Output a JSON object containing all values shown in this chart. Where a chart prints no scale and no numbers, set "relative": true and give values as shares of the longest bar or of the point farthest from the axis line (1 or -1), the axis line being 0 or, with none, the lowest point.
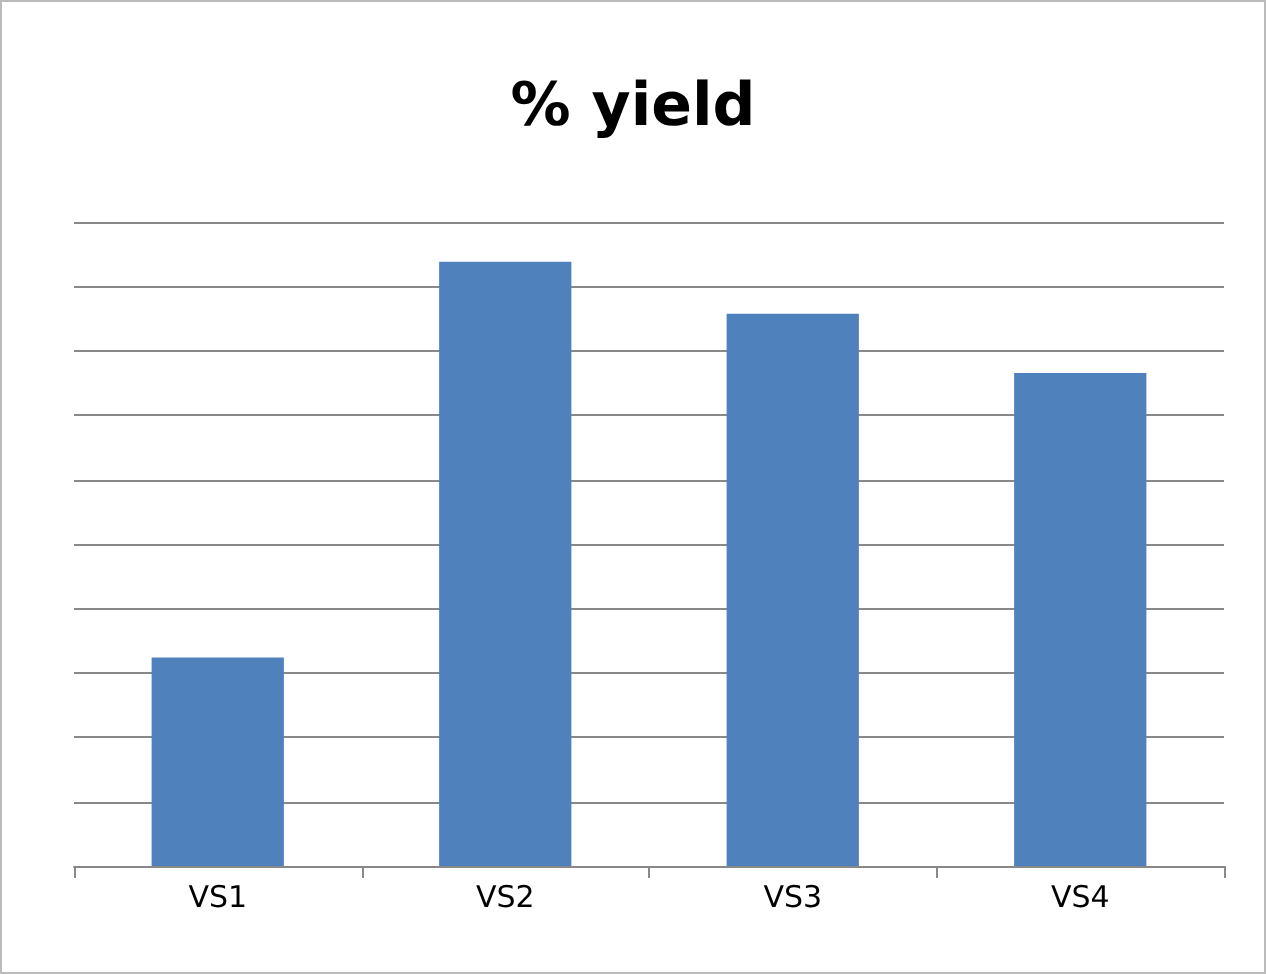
{
  "chart_data": {
    "type": "bar",
    "title": "% yield",
    "categories": [
      "VS1",
      "VS2",
      "VS3",
      "VS4"
    ],
    "values": [
      0.345,
      1,
      0.914,
      0.816
    ],
    "color": "#4f81bd",
    "relative": true,
    "grid": "y"
  }
}
